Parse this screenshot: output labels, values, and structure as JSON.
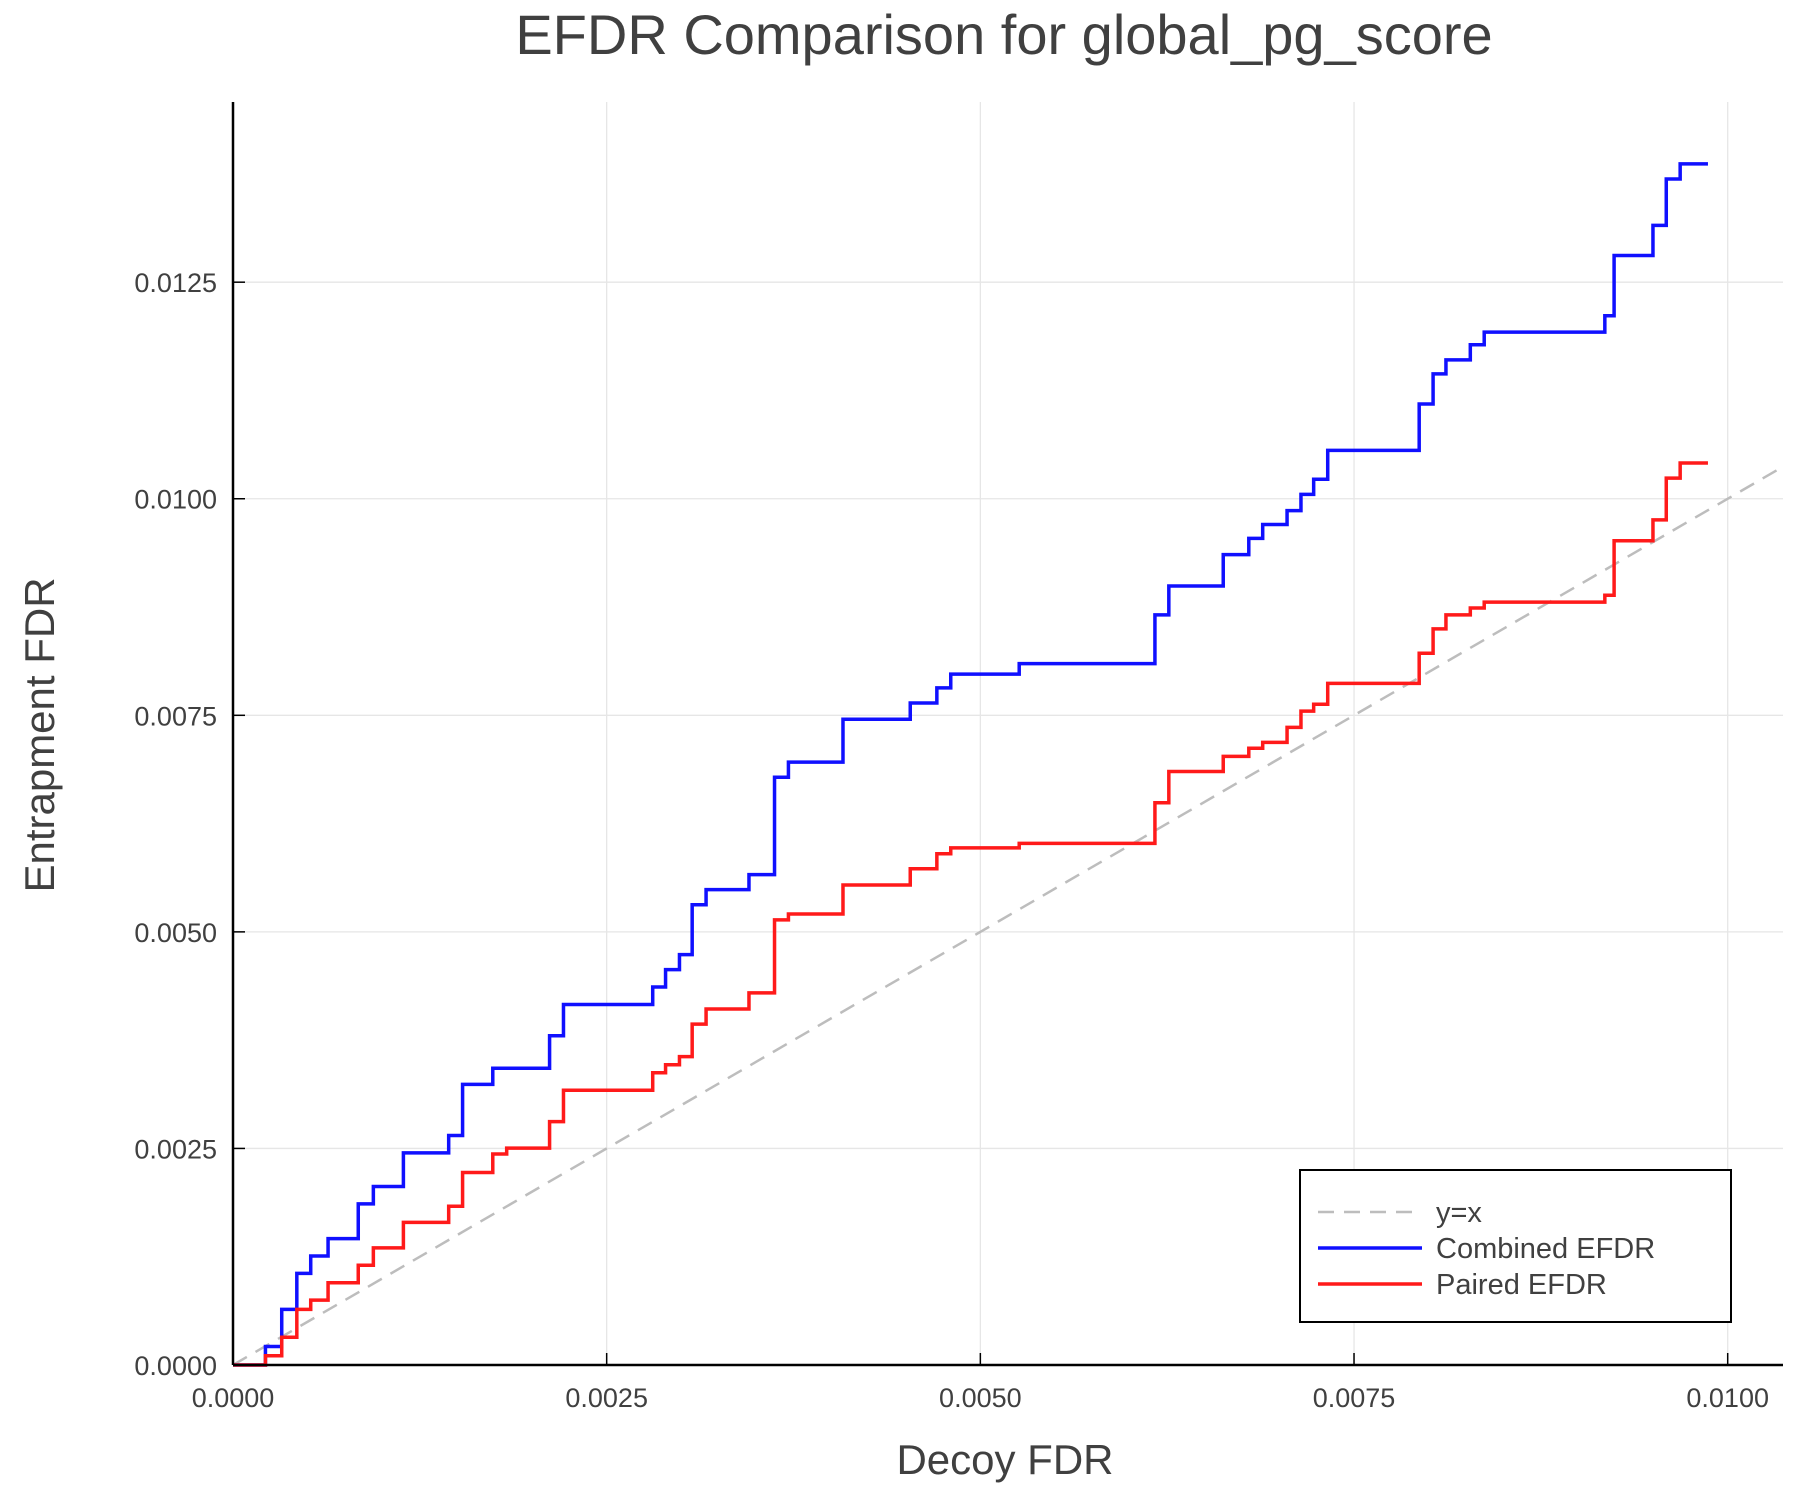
{
  "chart_data": {
    "type": "line",
    "title": "EFDR Comparison for global_pg_score",
    "xlabel": "Decoy FDR",
    "ylabel": "Entrapment FDR",
    "xlim": [
      0,
      0.01037
    ],
    "ylim": [
      0,
      0.01458
    ],
    "xticks": [
      "0.0000",
      "0.0025",
      "0.0050",
      "0.0075",
      "0.0100"
    ],
    "xtick_values": [
      0,
      0.0025,
      0.005,
      0.0075,
      0.01
    ],
    "yticks": [
      "0.0000",
      "0.0025",
      "0.0050",
      "0.0075",
      "0.0100",
      "0.0125"
    ],
    "ytick_values": [
      0,
      0.0025,
      0.005,
      0.0075,
      0.01,
      0.0125
    ],
    "grid": true,
    "legend_position": "bottom-right",
    "series": [
      {
        "name": "y=x",
        "style": "dashed",
        "color": "#bdbdbd",
        "x": [
          0,
          0.01037
        ],
        "y": [
          0,
          0.01037
        ]
      },
      {
        "name": "Combined EFDR",
        "style": "step-post",
        "color": "#1010ff",
        "x": [
          0,
          0.000217,
          0.000326,
          0.000427,
          0.00052,
          0.000636,
          0.000838,
          0.000939,
          0.00114,
          0.001443,
          0.001536,
          0.001738,
          0.002118,
          0.002211,
          0.002808,
          0.002894,
          0.002987,
          0.003072,
          0.003165,
          0.003452,
          0.003623,
          0.003716,
          0.004081,
          0.004531,
          0.004709,
          0.004802,
          0.00526,
          0.006168,
          0.006261,
          0.006625,
          0.006796,
          0.006889,
          0.007052,
          0.007145,
          0.00723,
          0.007324,
          0.007936,
          0.008029,
          0.008115,
          0.008278,
          0.008371,
          0.009178,
          0.00924,
          0.0095,
          0.009589,
          0.009682,
          0.009868
        ],
        "y": [
          0,
          0.000214,
          0.000642,
          0.001057,
          0.001258,
          0.001459,
          0.00186,
          0.002061,
          0.002449,
          0.00265,
          0.003239,
          0.003426,
          0.003801,
          0.004162,
          0.004363,
          0.004564,
          0.004738,
          0.005313,
          0.005487,
          0.005661,
          0.006785,
          0.006959,
          0.007454,
          0.007642,
          0.007816,
          0.007976,
          0.008097,
          0.008659,
          0.008993,
          0.009355,
          0.009542,
          0.009703,
          0.009863,
          0.010051,
          0.010225,
          0.010559,
          0.011094,
          0.011442,
          0.011603,
          0.011777,
          0.011924,
          0.012112,
          0.012808,
          0.013156,
          0.013691,
          0.013865,
          0.013865
        ]
      },
      {
        "name": "Paired EFDR",
        "style": "step-post",
        "color": "#ff1a1a",
        "x": [
          0,
          0.000217,
          0.000326,
          0.000427,
          0.00052,
          0.000636,
          0.000838,
          0.000939,
          0.00114,
          0.001443,
          0.001536,
          0.001738,
          0.001831,
          0.002118,
          0.002211,
          0.002808,
          0.002894,
          0.002987,
          0.003072,
          0.003165,
          0.003452,
          0.003623,
          0.003716,
          0.004081,
          0.004531,
          0.004709,
          0.004802,
          0.00526,
          0.006168,
          0.006261,
          0.006625,
          0.006796,
          0.006889,
          0.007052,
          0.007145,
          0.00723,
          0.007324,
          0.007936,
          0.008029,
          0.008115,
          0.008278,
          0.008371,
          0.009178,
          0.00924,
          0.0095,
          0.009589,
          0.009682,
          0.009868
        ],
        "y": [
          0,
          0.000107,
          0.000321,
          0.000642,
          0.000749,
          0.00095,
          0.001151,
          0.001352,
          0.001646,
          0.001833,
          0.002222,
          0.002436,
          0.002503,
          0.00281,
          0.003172,
          0.003373,
          0.003466,
          0.00356,
          0.003935,
          0.004109,
          0.004296,
          0.005139,
          0.005206,
          0.005541,
          0.005728,
          0.005902,
          0.005969,
          0.006022,
          0.006491,
          0.006852,
          0.007026,
          0.00712,
          0.007187,
          0.007361,
          0.007548,
          0.007628,
          0.007869,
          0.008217,
          0.008498,
          0.008659,
          0.008739,
          0.008806,
          0.008886,
          0.009515,
          0.009756,
          0.010238,
          0.010412,
          0.010412
        ]
      }
    ]
  }
}
